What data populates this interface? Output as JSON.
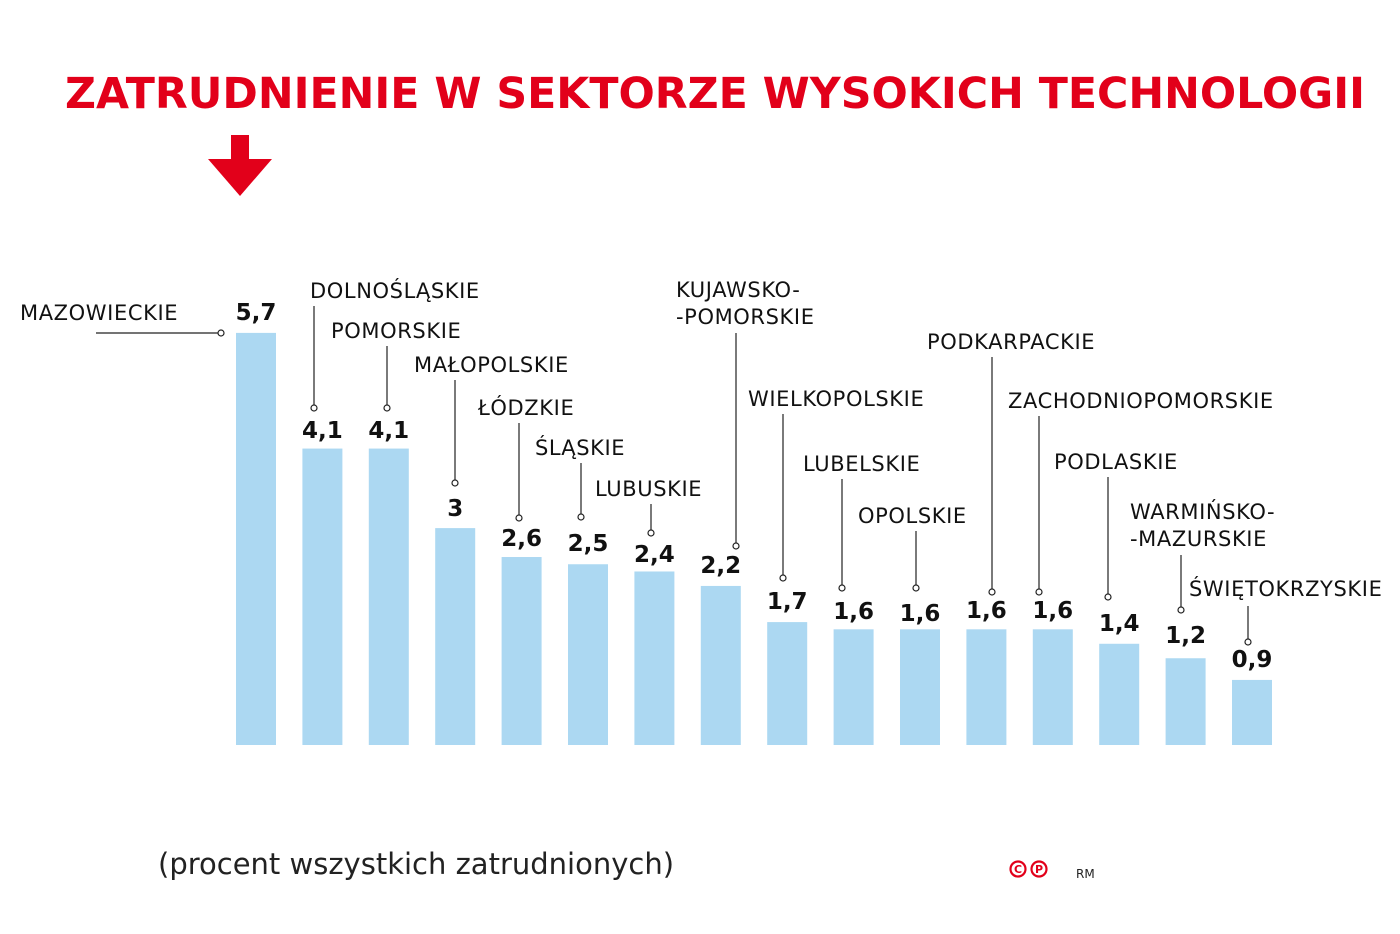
{
  "chart_data": {
    "type": "bar",
    "title": "ZATRUDNIENIE W SEKTORZE WYSOKICH TECHNOLOGII",
    "subtitle": "(procent wszystkich zatrudnionych)",
    "categories": [
      [
        "MAZOWIECKIE"
      ],
      [
        "DOLNOŚLĄSKIE"
      ],
      [
        "POMORSKIE"
      ],
      [
        "MAŁOPOLSKIE"
      ],
      [
        "ŁÓDZKIE"
      ],
      [
        "ŚLĄSKIE"
      ],
      [
        "LUBUSKIE"
      ],
      [
        "KUJAWSKO-",
        "-POMORSKIE"
      ],
      [
        "WIELKOPOLSKIE"
      ],
      [
        "LUBELSKIE"
      ],
      [
        "OPOLSKIE"
      ],
      [
        "PODKARPACKIE"
      ],
      [
        "ZACHODNIOPOMORSKIE"
      ],
      [
        "PODLASKIE"
      ],
      [
        "WARMIŃSKO-",
        "-MAZURSKIE"
      ],
      [
        "ŚWIĘTOKRZYSKIE"
      ]
    ],
    "values": [
      5.7,
      4.1,
      4.1,
      3,
      2.6,
      2.5,
      2.4,
      2.2,
      1.7,
      1.6,
      1.6,
      1.6,
      1.6,
      1.4,
      1.2,
      0.9
    ],
    "value_labels": [
      "5,7",
      "4,1",
      "4,1",
      "3",
      "2,6",
      "2,5",
      "2,4",
      "2,2",
      "1,7",
      "1,6",
      "1,6",
      "1,6",
      "1,6",
      "1,4",
      "1,2",
      "0,9"
    ],
    "ylim": [
      0,
      5.7
    ],
    "grid": false,
    "legend": "none",
    "colors": {
      "bar": "#acd8f2",
      "title": "#e2001a",
      "arrow": "#e2001a",
      "text": "#111111"
    }
  },
  "credits": {
    "logo": "©℗",
    "author": "RM"
  },
  "icons": {
    "pointer": "down-arrow-icon"
  }
}
